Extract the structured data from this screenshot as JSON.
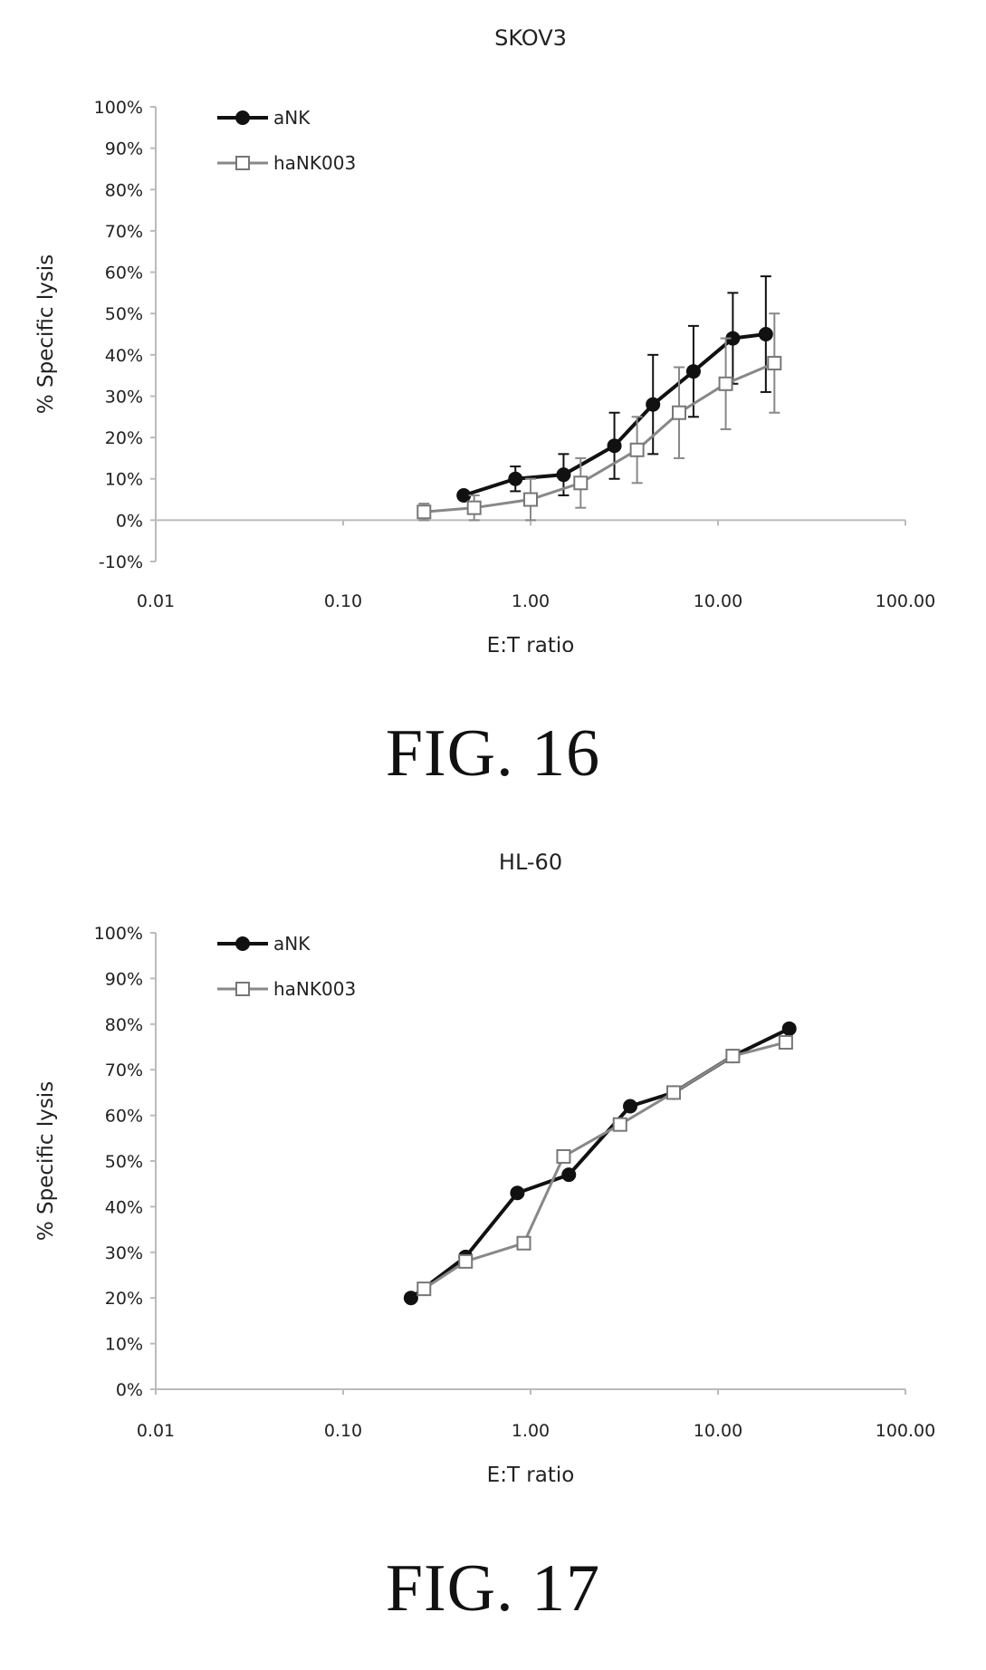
{
  "chart_data": [
    {
      "type": "line",
      "title": "SKOV3",
      "xlabel": "E:T ratio",
      "ylabel": "% Specific lysis",
      "x_scale": "log",
      "xlim": [
        0.01,
        100
      ],
      "ylim": [
        -10,
        100
      ],
      "x_ticks": [
        "0.01",
        "0.10",
        "1.00",
        "10.00",
        "100.00"
      ],
      "y_ticks": [
        "-10%",
        "0%",
        "10%",
        "20%",
        "30%",
        "40%",
        "50%",
        "60%",
        "70%",
        "80%",
        "90%",
        "100%"
      ],
      "legend_position": "top-left",
      "grid": false,
      "series": [
        {
          "name": "aNK",
          "marker": "filled-circle",
          "color": "#111111",
          "x": [
            0.44,
            0.83,
            1.5,
            2.8,
            4.5,
            7.4,
            12,
            18
          ],
          "y": [
            6,
            10,
            11,
            18,
            28,
            36,
            44,
            45
          ],
          "err": [
            0,
            3,
            5,
            8,
            12,
            11,
            11,
            14
          ]
        },
        {
          "name": "haNK003",
          "marker": "open-square",
          "color": "#888888",
          "x": [
            0.27,
            0.5,
            1.0,
            1.85,
            3.7,
            6.2,
            11,
            20
          ],
          "y": [
            2,
            3,
            5,
            9,
            17,
            26,
            33,
            38
          ],
          "err": [
            2,
            3,
            5,
            6,
            8,
            11,
            11,
            12
          ]
        }
      ]
    },
    {
      "type": "line",
      "title": "HL-60",
      "xlabel": "E:T ratio",
      "ylabel": "% Specific lysis",
      "x_scale": "log",
      "xlim": [
        0.01,
        100
      ],
      "ylim": [
        0,
        100
      ],
      "x_ticks": [
        "0.01",
        "0.10",
        "1.00",
        "10.00",
        "100.00"
      ],
      "y_ticks": [
        "0%",
        "10%",
        "20%",
        "30%",
        "40%",
        "50%",
        "60%",
        "70%",
        "80%",
        "90%",
        "100%"
      ],
      "legend_position": "top-left",
      "grid": false,
      "series": [
        {
          "name": "aNK",
          "marker": "filled-circle",
          "color": "#111111",
          "x": [
            0.23,
            0.45,
            0.85,
            1.6,
            3.4,
            5.8,
            12,
            24
          ],
          "y": [
            20,
            29,
            43,
            47,
            62,
            65,
            73,
            79
          ]
        },
        {
          "name": "haNK003",
          "marker": "open-square",
          "color": "#888888",
          "x": [
            0.27,
            0.45,
            0.92,
            1.5,
            3.0,
            5.8,
            12,
            23
          ],
          "y": [
            22,
            28,
            32,
            51,
            58,
            65,
            73,
            76
          ]
        }
      ]
    }
  ],
  "figures": [
    {
      "caption": "FIG. 16"
    },
    {
      "caption": "FIG. 17"
    }
  ]
}
